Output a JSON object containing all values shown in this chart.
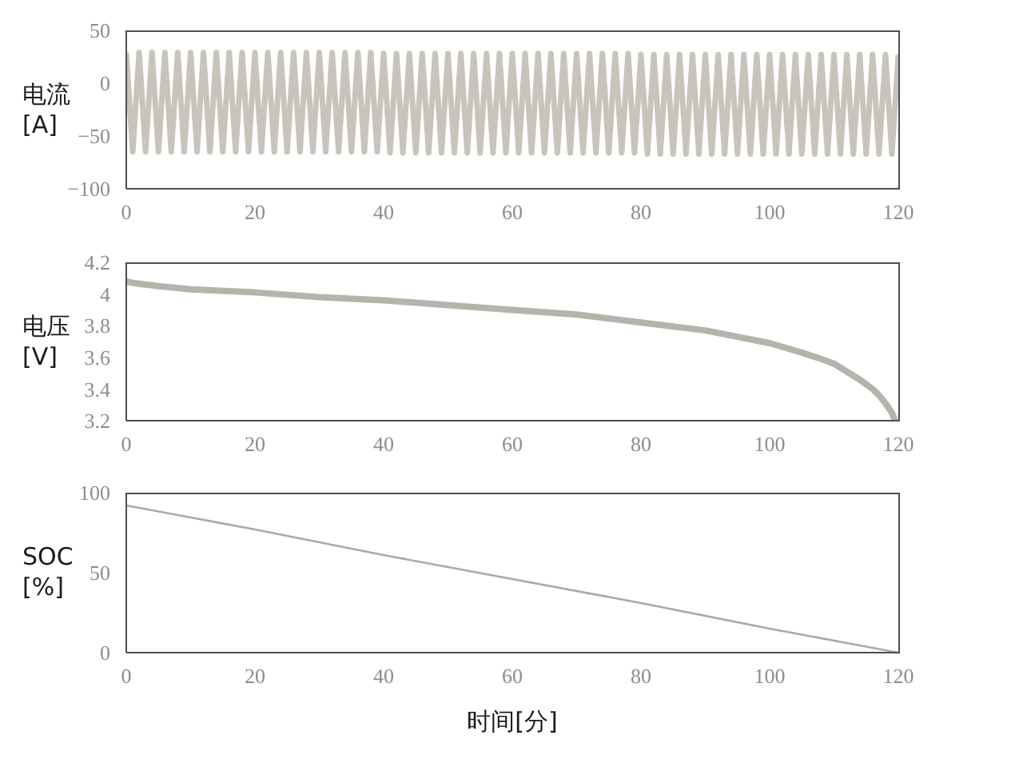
{
  "chart_data": [
    {
      "type": "line",
      "ylabel": "电流\n[A]",
      "x": [
        0,
        1,
        2,
        3,
        4,
        5,
        6,
        7,
        8,
        9,
        10,
        11,
        12,
        13,
        14,
        15,
        16,
        17,
        18,
        19,
        20,
        21,
        22,
        23,
        24,
        25,
        26,
        27,
        28,
        29,
        30,
        31,
        32,
        33,
        34,
        35,
        36,
        37,
        38,
        39,
        40,
        41,
        42,
        43,
        44,
        45,
        46,
        47,
        48,
        49,
        50,
        51,
        52,
        53,
        54,
        55,
        56,
        57,
        58,
        59,
        60,
        61,
        62,
        63,
        64,
        65,
        66,
        67,
        68,
        69,
        70,
        71,
        72,
        73,
        74,
        75,
        76,
        77,
        78,
        79,
        80,
        81,
        82,
        83,
        84,
        85,
        86,
        87,
        88,
        89,
        90,
        91,
        92,
        93,
        94,
        95,
        96,
        97,
        98,
        99,
        100,
        101,
        102,
        103,
        104,
        105,
        106,
        107,
        108,
        109,
        110,
        111,
        112,
        113,
        114,
        115,
        116,
        117,
        118,
        119,
        120
      ],
      "values": [
        29,
        -65,
        29,
        -65,
        29,
        -65,
        29,
        -65,
        29,
        -65,
        29,
        -65,
        29,
        -65,
        29,
        -65,
        29,
        -65,
        29,
        -65,
        29,
        -65,
        29,
        -65,
        29,
        -65,
        29,
        -65,
        29,
        -65,
        29,
        -65,
        29,
        -65,
        29,
        -65,
        29,
        -65,
        29,
        -65,
        28,
        -66,
        28,
        -66,
        28,
        -66,
        28,
        -66,
        28,
        -66,
        28,
        -66,
        28,
        -66,
        28,
        -66,
        28,
        -66,
        28,
        -66,
        28,
        -66,
        28,
        -66,
        28,
        -66,
        28,
        -66,
        28,
        -66,
        28,
        -66,
        28,
        -66,
        28,
        -66,
        28,
        -66,
        28,
        -66,
        27,
        -67,
        27,
        -67,
        27,
        -67,
        27,
        -67,
        27,
        -67,
        27,
        -67,
        27,
        -67,
        27,
        -67,
        27,
        -67,
        27,
        -67,
        27,
        -67,
        27,
        -67,
        27,
        -67,
        27,
        -67,
        27,
        -67,
        27,
        -67,
        27,
        -67,
        27,
        -67,
        27,
        -67,
        27,
        -67,
        27
      ],
      "color": "#c8c4bc",
      "xlim": [
        0,
        120
      ],
      "xticks": [
        0,
        20,
        40,
        60,
        80,
        100,
        120
      ],
      "ylim": [
        -100,
        50
      ],
      "yticks": [
        -100,
        -50,
        0,
        50
      ]
    },
    {
      "type": "line",
      "ylabel": "电压\n[V]",
      "x": [
        0,
        1,
        5,
        10,
        20,
        30,
        40,
        50,
        60,
        70,
        80,
        90,
        95,
        100,
        105,
        108,
        110,
        112,
        114,
        116,
        117,
        118,
        119,
        119.5
      ],
      "values": [
        4.08,
        4.07,
        4.05,
        4.03,
        4.01,
        3.98,
        3.96,
        3.93,
        3.9,
        3.87,
        3.82,
        3.77,
        3.73,
        3.69,
        3.63,
        3.59,
        3.56,
        3.51,
        3.46,
        3.4,
        3.36,
        3.31,
        3.25,
        3.2
      ],
      "color": "#b4b4ac",
      "xlim": [
        0,
        120
      ],
      "xticks": [
        0,
        20,
        40,
        60,
        80,
        100,
        120
      ],
      "ylim": [
        3.2,
        4.2
      ],
      "yticks": [
        3.2,
        3.4,
        3.6,
        3.8,
        4,
        4.2
      ]
    },
    {
      "type": "line",
      "ylabel": "SOC\n[%]",
      "xlabel": "时间[分]",
      "x": [
        0,
        20,
        40,
        60,
        80,
        100,
        120
      ],
      "values": [
        92,
        77,
        61,
        46,
        31,
        15,
        0
      ],
      "color": "#a9a9a9",
      "xlim": [
        0,
        120
      ],
      "xticks": [
        0,
        20,
        40,
        60,
        80,
        100,
        120
      ],
      "ylim": [
        0,
        100
      ],
      "yticks": [
        0,
        50,
        100
      ]
    }
  ]
}
